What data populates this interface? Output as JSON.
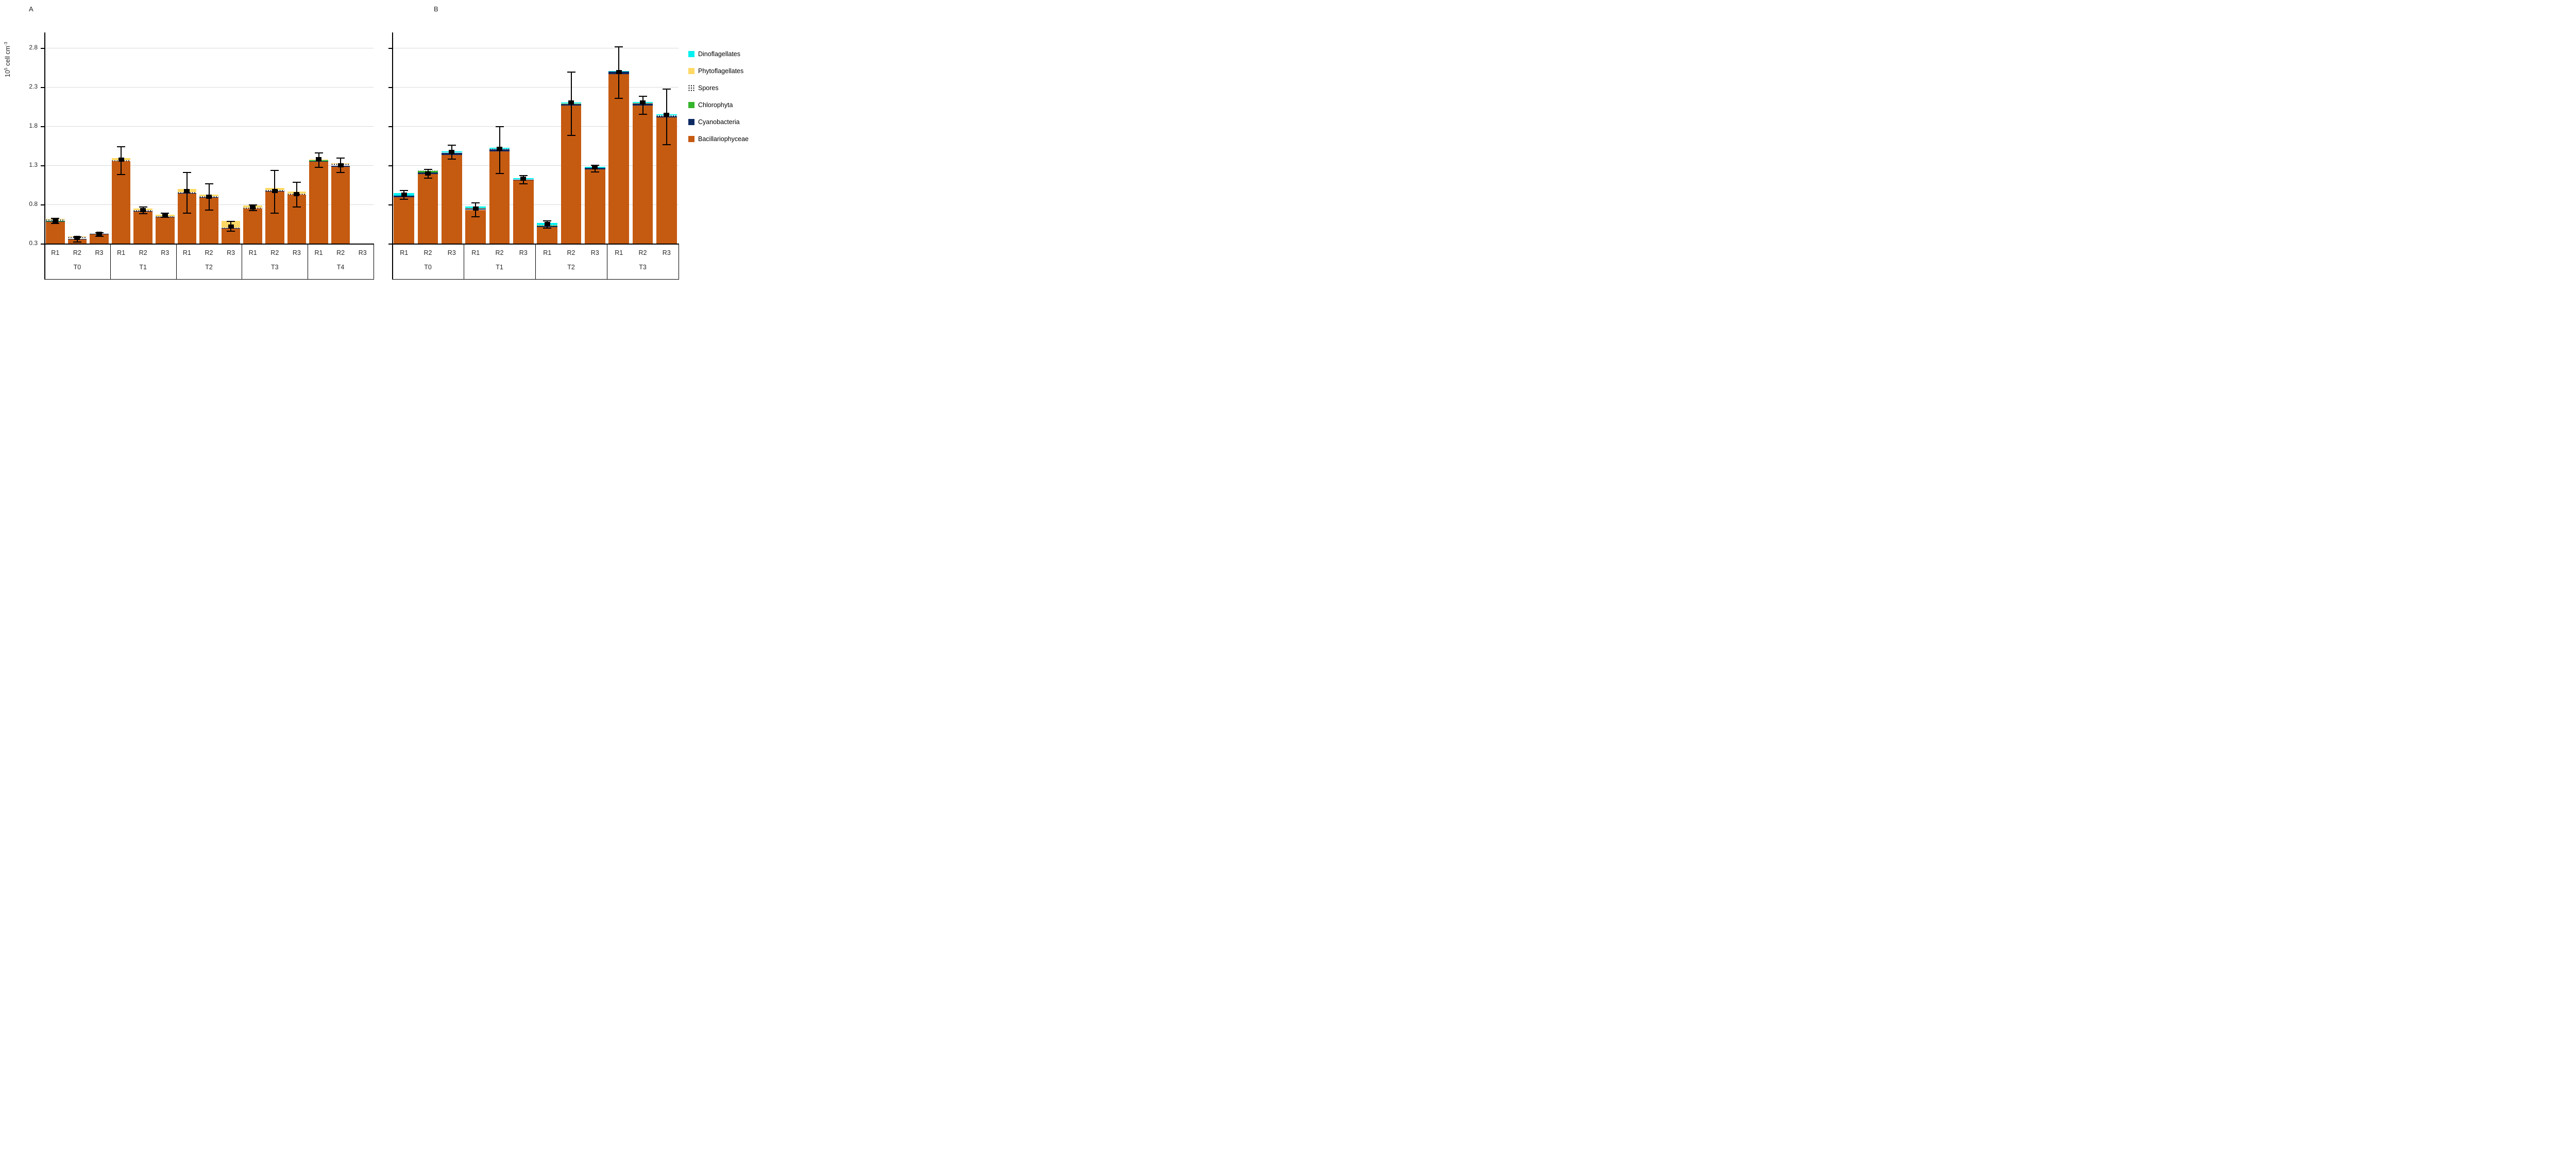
{
  "page": {
    "background": "#ffffff"
  },
  "panel_titles": {
    "a": "A",
    "b": "B"
  },
  "y_axis": {
    "title_parts": {
      "base": "10",
      "sup": "5",
      "mid": " cell cm",
      "sup2": "-3"
    },
    "tick_labels": [
      "2.8",
      "2.3",
      "1.8",
      "1.3",
      "0.8",
      "0.3"
    ],
    "tick_values": [
      2.8,
      2.3,
      1.8,
      1.3,
      0.8,
      0.3
    ],
    "min": 0.3,
    "max": 3.0,
    "gridlines": [
      0.8,
      1.3,
      1.8,
      2.3,
      2.8
    ],
    "gridline_color": "#d9d9d9"
  },
  "series_colors": {
    "Bacillariophyceae": "#c55a11",
    "Cyanobacteria": "#0d2a63",
    "Chlorophyta": "#35b52b",
    "Spores": "pattern-dots",
    "Phytoflagellates": "#ffd966",
    "Dinoflagellates": "#00f0f0"
  },
  "legend": {
    "items": [
      {
        "label": "Dinoflagellates",
        "color": "#00f0f0",
        "pattern": false
      },
      {
        "label": "Phytoflagellates",
        "color": "#ffd966",
        "pattern": false
      },
      {
        "label": "Spores",
        "color": "#ffffff",
        "pattern": true
      },
      {
        "label": "Chlorophyta",
        "color": "#35b52b",
        "pattern": false
      },
      {
        "label": "Cyanobacteria",
        "color": "#0d2a63",
        "pattern": false
      },
      {
        "label": "Bacillariophyceae",
        "color": "#c55a11",
        "pattern": false
      }
    ]
  },
  "chart_data": [
    {
      "panel": "A",
      "type": "bar",
      "stacked": true,
      "ylabel": "10^5 cell cm^-3",
      "ylim": [
        0.3,
        3.0
      ],
      "group_labels": [
        "T0",
        "T1",
        "T2",
        "T3",
        "T4"
      ],
      "replicate_labels": [
        "R1",
        "R2",
        "R3"
      ],
      "series_order": [
        "Bacillariophyceae",
        "Cyanobacteria",
        "Chlorophyta",
        "Spores",
        "Phytoflagellates",
        "Dinoflagellates"
      ],
      "bars": [
        {
          "group": "T0",
          "rep": "R1",
          "values": [
            0.575,
            0.006,
            0.01,
            0.016,
            0.007,
            0
          ],
          "error": {
            "center": 0.59,
            "plus": 0.03,
            "minus": 0.03
          }
        },
        {
          "group": "T0",
          "rep": "R2",
          "values": [
            0.356,
            0.006,
            0,
            0.021,
            0.009,
            0
          ],
          "error": {
            "center": 0.371,
            "plus": 0.018,
            "minus": 0.051
          }
        },
        {
          "group": "T0",
          "rep": "R3",
          "values": [
            0.417,
            0.012,
            0,
            0.006,
            0,
            0
          ],
          "error": {
            "center": 0.426,
            "plus": 0.015,
            "minus": 0.031
          }
        },
        {
          "group": "T1",
          "rep": "R1",
          "values": [
            1.355,
            0,
            0,
            0.013,
            0.022,
            0
          ],
          "error": {
            "center": 1.372,
            "plus": 0.167,
            "minus": 0.193
          }
        },
        {
          "group": "T1",
          "rep": "R2",
          "values": [
            0.713,
            0.004,
            0,
            0.01,
            0.022,
            0
          ],
          "error": {
            "center": 0.731,
            "plus": 0.036,
            "minus": 0.052
          }
        },
        {
          "group": "T1",
          "rep": "R3",
          "values": [
            0.635,
            0.005,
            0,
            0.008,
            0.022,
            0
          ],
          "error": {
            "center": 0.655,
            "plus": 0.032,
            "minus": 0.021
          }
        },
        {
          "group": "T2",
          "rep": "R1",
          "values": [
            0.94,
            0.004,
            0,
            0.012,
            0.04,
            0
          ],
          "error": {
            "center": 0.969,
            "plus": 0.236,
            "minus": 0.282
          }
        },
        {
          "group": "T2",
          "rep": "R2",
          "values": [
            0.89,
            0.004,
            0,
            0.012,
            0.02,
            0
          ],
          "error": {
            "center": 0.898,
            "plus": 0.168,
            "minus": 0.167
          }
        },
        {
          "group": "T2",
          "rep": "R3",
          "values": [
            0.492,
            0.004,
            0,
            0.01,
            0.085,
            0
          ],
          "error": {
            "center": 0.518,
            "plus": 0.064,
            "minus": 0.062
          }
        },
        {
          "group": "T3",
          "rep": "R1",
          "values": [
            0.748,
            0,
            0,
            0.012,
            0.024,
            0
          ],
          "error": {
            "center": 0.761,
            "plus": 0.036,
            "minus": 0.038
          }
        },
        {
          "group": "T3",
          "rep": "R2",
          "values": [
            0.967,
            0.004,
            0,
            0.012,
            0.03,
            0
          ],
          "error": {
            "center": 0.969,
            "plus": 0.264,
            "minus": 0.282
          }
        },
        {
          "group": "T3",
          "rep": "R3",
          "values": [
            0.923,
            0,
            0,
            0.014,
            0.026,
            0
          ],
          "error": {
            "center": 0.934,
            "plus": 0.15,
            "minus": 0.167
          }
        },
        {
          "group": "T4",
          "rep": "R1",
          "values": [
            1.352,
            0.004,
            0.013,
            0.006,
            0.007,
            0
          ],
          "error": {
            "center": 1.377,
            "plus": 0.084,
            "minus": 0.102
          }
        },
        {
          "group": "T4",
          "rep": "R2",
          "values": [
            1.282,
            0.011,
            0,
            0.027,
            0.008,
            0
          ],
          "error": {
            "center": 1.3,
            "plus": 0.09,
            "minus": 0.095
          }
        },
        {
          "group": "T4",
          "rep": "R3",
          "values": [
            0,
            0,
            0,
            0,
            0,
            0
          ],
          "error": null
        }
      ]
    },
    {
      "panel": "B",
      "type": "bar",
      "stacked": true,
      "ylabel": "10^5 cell cm^-3",
      "ylim": [
        0.3,
        3.0
      ],
      "group_labels": [
        "T0",
        "T1",
        "T2",
        "T3"
      ],
      "replicate_labels": [
        "R1",
        "R2",
        "R3"
      ],
      "series_order": [
        "Bacillariophyceae",
        "Cyanobacteria",
        "Chlorophyta",
        "Spores",
        "Phytoflagellates",
        "Dinoflagellates"
      ],
      "bars": [
        {
          "group": "T0",
          "rep": "R1",
          "values": [
            0.89,
            0.025,
            0,
            0,
            0,
            0.03
          ],
          "error": {
            "center": 0.925,
            "plus": 0.052,
            "minus": 0.061
          }
        },
        {
          "group": "T0",
          "rep": "R2",
          "values": [
            1.19,
            0.018,
            0.017,
            0.012,
            0,
            0
          ],
          "error": {
            "center": 1.197,
            "plus": 0.052,
            "minus": 0.061
          }
        },
        {
          "group": "T0",
          "rep": "R3",
          "values": [
            1.434,
            0.027,
            0,
            0,
            0,
            0.018
          ],
          "error": {
            "center": 1.469,
            "plus": 0.089,
            "minus": 0.087
          }
        },
        {
          "group": "T1",
          "rep": "R1",
          "values": [
            0.731,
            0.018,
            0,
            0,
            0.005,
            0.021
          ],
          "error": {
            "center": 0.749,
            "plus": 0.071,
            "minus": 0.105
          }
        },
        {
          "group": "T1",
          "rep": "R2",
          "values": [
            1.479,
            0.026,
            0,
            0.005,
            0,
            0.012
          ],
          "error": {
            "center": 1.513,
            "plus": 0.281,
            "minus": 0.316
          }
        },
        {
          "group": "T1",
          "rep": "R3",
          "values": [
            1.11,
            0.009,
            0,
            0,
            0,
            0.017
          ],
          "error": {
            "center": 1.126,
            "plus": 0.044,
            "minus": 0.06
          }
        },
        {
          "group": "T2",
          "rep": "R1",
          "values": [
            0.511,
            0.017,
            0.004,
            0.008,
            0,
            0.026
          ],
          "error": {
            "center": 0.548,
            "plus": 0.044,
            "minus": 0.053
          }
        },
        {
          "group": "T2",
          "rep": "R2",
          "values": [
            2.066,
            0.021,
            0,
            0,
            0.005,
            0.012
          ],
          "error": {
            "center": 2.102,
            "plus": 0.387,
            "minus": 0.421
          }
        },
        {
          "group": "T2",
          "rep": "R3",
          "values": [
            1.249,
            0.017,
            0,
            0,
            0,
            0.017
          ],
          "error": {
            "center": 1.275,
            "plus": 0.027,
            "minus": 0.06
          }
        },
        {
          "group": "T3",
          "rep": "R1",
          "values": [
            2.466,
            0.031,
            0,
            0,
            0,
            0.009
          ],
          "error": {
            "center": 2.489,
            "plus": 0.324,
            "minus": 0.335
          }
        },
        {
          "group": "T3",
          "rep": "R2",
          "values": [
            2.061,
            0.032,
            0,
            0,
            0.004,
            0.014
          ],
          "error": {
            "center": 2.102,
            "plus": 0.079,
            "minus": 0.149
          }
        },
        {
          "group": "T3",
          "rep": "R3",
          "values": [
            1.913,
            0.012,
            0,
            0.012,
            0,
            0.014
          ],
          "error": {
            "center": 1.944,
            "plus": 0.333,
            "minus": 0.378
          }
        }
      ]
    }
  ],
  "layout_hint": {
    "legend_position": "right",
    "grid": true,
    "error_bars": true
  }
}
